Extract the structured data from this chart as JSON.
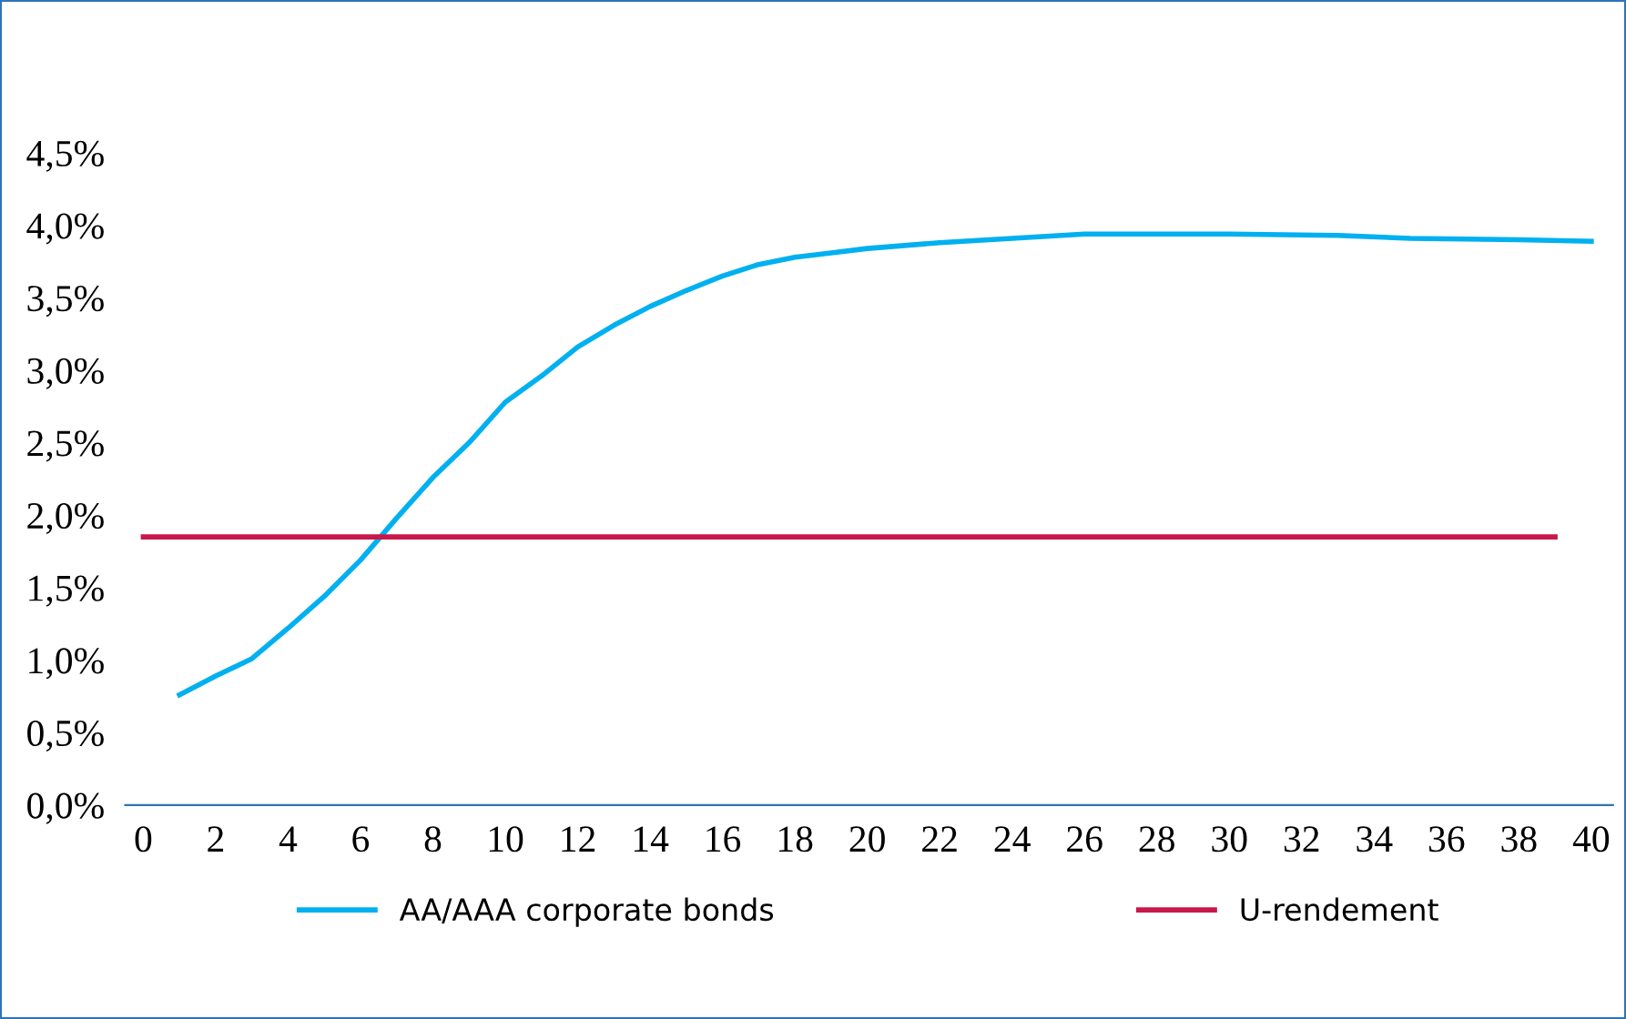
{
  "chart_data": {
    "type": "line",
    "x": [
      1,
      2,
      3,
      4,
      5,
      6,
      7,
      8,
      9,
      10,
      11,
      12,
      13,
      14,
      15,
      16,
      17,
      18,
      19,
      20,
      22,
      24,
      26,
      30,
      33,
      35,
      38,
      40
    ],
    "series": [
      {
        "name": "AA/AAA corporate bonds",
        "color": "#00b0f0",
        "values": [
          0.76,
          0.89,
          1.01,
          1.22,
          1.44,
          1.69,
          1.98,
          2.26,
          2.5,
          2.78,
          2.96,
          3.16,
          3.31,
          3.44,
          3.55,
          3.65,
          3.73,
          3.78,
          3.81,
          3.84,
          3.88,
          3.91,
          3.94,
          3.94,
          3.93,
          3.91,
          3.9,
          3.89
        ]
      },
      {
        "name": "U-rendement",
        "color": "#c8174a",
        "x": [
          0,
          39
        ],
        "values": [
          1.85,
          1.85
        ]
      }
    ],
    "xlim": [
      -0.5,
      40.6
    ],
    "xticks": [
      0,
      2,
      4,
      6,
      8,
      10,
      12,
      14,
      16,
      18,
      20,
      22,
      24,
      26,
      28,
      30,
      32,
      34,
      36,
      38,
      40
    ],
    "ylim": [
      0,
      4.5
    ],
    "yticks": [
      {
        "value": 0,
        "label": "0,0%"
      },
      {
        "value": 0.5,
        "label": "0,5%"
      },
      {
        "value": 1,
        "label": "1,0%"
      },
      {
        "value": 1.5,
        "label": "1,5%"
      },
      {
        "value": 2,
        "label": "2,0%"
      },
      {
        "value": 2.5,
        "label": "2,5%"
      },
      {
        "value": 3,
        "label": "3,0%"
      },
      {
        "value": 3.5,
        "label": "3,5%"
      },
      {
        "value": 4,
        "label": "4,0%"
      },
      {
        "value": 4.5,
        "label": "4,5%"
      }
    ],
    "grid": false,
    "legend": "bottom",
    "marker": "none",
    "line_style": "solid"
  }
}
